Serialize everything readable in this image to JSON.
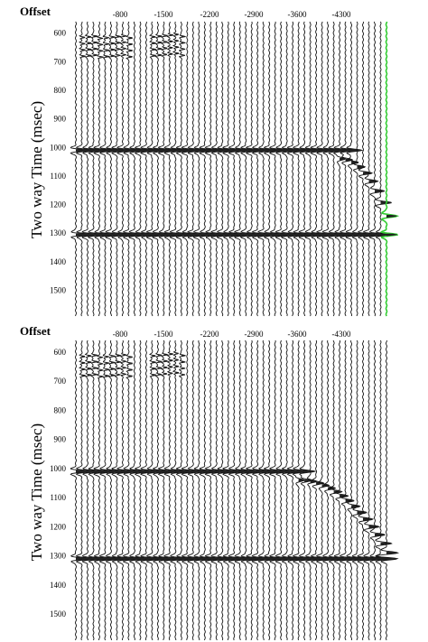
{
  "chart_data": [
    {
      "type": "seismic",
      "panel_label": "Offset",
      "x_tick_labels": [
        "-800",
        "-1500",
        "-2200",
        "-2900",
        "-3600",
        "-4300"
      ],
      "ylabel": "Two way Time (msec)",
      "ylim": [
        560,
        1590
      ],
      "y_ticks": [
        600,
        700,
        800,
        900,
        1000,
        1100,
        1200,
        1300,
        1400,
        1500
      ],
      "trace_count": 54,
      "events": [
        {
          "kind": "flat",
          "time": 1010,
          "end_trace": 48
        },
        {
          "kind": "flat",
          "time": 1305,
          "end_trace": 54
        },
        {
          "kind": "dipping",
          "start_trace": 46,
          "start_time": 1040,
          "end_trace": 54,
          "end_time": 1240
        },
        {
          "kind": "cluster",
          "start_trace": 2,
          "end_trace": 10,
          "time": 650
        },
        {
          "kind": "cluster",
          "start_trace": 14,
          "end_trace": 19,
          "time": 645
        }
      ],
      "highlight_trace_color": "#33cc33"
    },
    {
      "type": "seismic",
      "panel_label": "Offset",
      "x_tick_labels": [
        "-800",
        "-1500",
        "-2200",
        "-2900",
        "-3600",
        "-4300"
      ],
      "ylabel": "Two way Time (msec)",
      "ylim": [
        560,
        1590
      ],
      "y_ticks": [
        600,
        700,
        800,
        900,
        1000,
        1100,
        1200,
        1300,
        1400,
        1500
      ],
      "trace_count": 54,
      "events": [
        {
          "kind": "flat",
          "time": 1010,
          "end_trace": 40
        },
        {
          "kind": "flat",
          "time": 1310,
          "end_trace": 54
        },
        {
          "kind": "dipping",
          "start_trace": 39,
          "start_time": 1040,
          "end_trace": 54,
          "end_time": 1290
        },
        {
          "kind": "cluster",
          "start_trace": 2,
          "end_trace": 10,
          "time": 650
        },
        {
          "kind": "cluster",
          "start_trace": 14,
          "end_trace": 19,
          "time": 645
        }
      ],
      "highlight_trace_color": ""
    }
  ]
}
